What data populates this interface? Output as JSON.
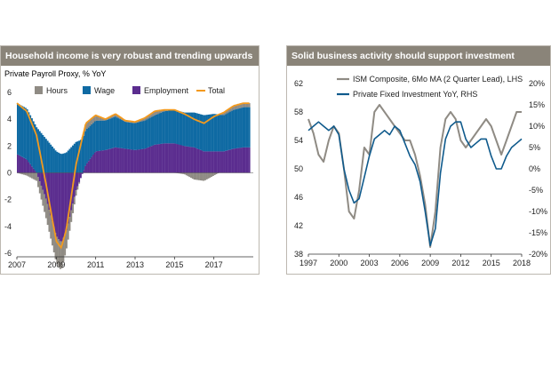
{
  "left": {
    "title": "Household income is very robust and trending upwards",
    "subtitle": "Private Payroll Proxy, % YoY"
  },
  "right": {
    "title": "Solid business activity should support investment"
  },
  "chart_data": [
    {
      "type": "bar",
      "ylim": [
        -6,
        6
      ],
      "yticks": [
        6,
        4,
        2,
        0,
        -2,
        -4,
        -6
      ],
      "xlim": [
        2007.0,
        2019.0
      ],
      "xticks": [
        2007,
        2009,
        2011,
        2013,
        2015,
        2017
      ],
      "legend": [
        "Hours",
        "Wage",
        "Employment",
        "Total"
      ],
      "legend_position": "top",
      "colors": {
        "Hours": "#8f8b84",
        "Wage": "#0f6aa3",
        "Employment": "#5b2d8f",
        "Total": "#f39a1e"
      },
      "x": [
        2007.0,
        2007.5,
        2008.0,
        2008.5,
        2009.0,
        2009.25,
        2009.5,
        2010.0,
        2010.5,
        2011.0,
        2011.5,
        2012.0,
        2012.5,
        2013.0,
        2013.5,
        2014.0,
        2014.5,
        2015.0,
        2015.5,
        2016.0,
        2016.5,
        2017.0,
        2017.5,
        2018.0,
        2018.5
      ],
      "series": [
        {
          "name": "Hours",
          "values": [
            0.0,
            -0.2,
            -0.6,
            -1.5,
            -2.0,
            -2.1,
            -1.4,
            -0.4,
            0.5,
            0.4,
            0.1,
            0.2,
            0.1,
            0.1,
            0.2,
            0.3,
            0.1,
            0.0,
            -0.1,
            -0.5,
            -0.6,
            -0.2,
            0.2,
            0.3,
            0.3
          ]
        },
        {
          "name": "Wage",
          "values": [
            3.8,
            3.8,
            3.4,
            2.5,
            1.6,
            1.4,
            1.5,
            2.3,
            2.6,
            2.3,
            2.2,
            2.3,
            2.0,
            2.0,
            2.1,
            2.2,
            2.4,
            2.5,
            2.5,
            2.6,
            2.7,
            2.8,
            2.7,
            2.9,
            3.0
          ]
        },
        {
          "name": "Employment",
          "values": [
            1.4,
            1.0,
            0.0,
            -2.0,
            -4.7,
            -5.2,
            -4.4,
            -1.3,
            0.6,
            1.6,
            1.7,
            1.9,
            1.8,
            1.7,
            1.8,
            2.1,
            2.2,
            2.2,
            2.0,
            1.9,
            1.6,
            1.6,
            1.6,
            1.8,
            1.9
          ]
        },
        {
          "name": "Total",
          "values": [
            5.2,
            4.6,
            2.8,
            -1.0,
            -5.1,
            -5.6,
            -4.3,
            0.6,
            3.7,
            4.3,
            4.0,
            4.4,
            3.9,
            3.8,
            4.1,
            4.6,
            4.7,
            4.7,
            4.4,
            4.0,
            3.7,
            4.2,
            4.5,
            5.0,
            5.2
          ]
        }
      ]
    },
    {
      "type": "line",
      "y_left_lim": [
        38,
        62
      ],
      "y_left_ticks": [
        62,
        58,
        54,
        50,
        46,
        42,
        38
      ],
      "y_right_lim": [
        -20,
        20
      ],
      "y_right_ticks": [
        "20%",
        "15%",
        "10%",
        "5%",
        "0%",
        "-5%",
        "-10%",
        "-15%",
        "-20%"
      ],
      "xlim": [
        1997,
        2018
      ],
      "xticks": [
        1997,
        2000,
        2003,
        2006,
        2009,
        2012,
        2015,
        2018
      ],
      "legend_position": "top",
      "series": [
        {
          "name": "ISM Composite, 6Mo MA (2 Quarter Lead), LHS",
          "axis": "left",
          "color": "#8f8b84",
          "x": [
            1997,
            1997.5,
            1998,
            1998.5,
            1999,
            1999.5,
            2000,
            2000.5,
            2001,
            2001.5,
            2002,
            2002.5,
            2003,
            2003.5,
            2004,
            2004.5,
            2005,
            2005.5,
            2006,
            2006.5,
            2007,
            2007.5,
            2008,
            2008.5,
            2009,
            2009.5,
            2010,
            2010.5,
            2011,
            2011.5,
            2012,
            2012.5,
            2013,
            2013.5,
            2014,
            2014.5,
            2015,
            2015.5,
            2016,
            2016.5,
            2017,
            2017.5,
            2018
          ],
          "values": [
            57,
            55,
            52,
            51,
            54,
            56,
            55,
            50,
            44,
            43,
            47,
            53,
            52,
            58,
            59,
            58,
            57,
            56,
            55,
            54,
            54,
            52,
            49,
            45,
            39,
            44,
            53,
            57,
            58,
            57,
            54,
            53,
            54,
            55,
            56,
            57,
            56,
            54,
            52,
            54,
            56,
            58,
            58
          ]
        },
        {
          "name": "Private Fixed Investment YoY, RHS",
          "axis": "right",
          "color": "#0f5a8c",
          "x": [
            1997,
            1997.5,
            1998,
            1998.5,
            1999,
            1999.5,
            2000,
            2000.5,
            2001,
            2001.5,
            2002,
            2002.5,
            2003,
            2003.5,
            2004,
            2004.5,
            2005,
            2005.5,
            2006,
            2006.5,
            2007,
            2007.5,
            2008,
            2008.5,
            2009,
            2009.5,
            2010,
            2010.5,
            2011,
            2011.5,
            2012,
            2012.5,
            2013,
            2013.5,
            2014,
            2014.5,
            2015,
            2015.5,
            2016,
            2016.5,
            2017,
            2017.5,
            2018
          ],
          "values": [
            9,
            10,
            11,
            10,
            9,
            10,
            8,
            0,
            -5,
            -8,
            -7,
            -2,
            3,
            7,
            8,
            9,
            8,
            10,
            9,
            6,
            3,
            1,
            -3,
            -10,
            -18,
            -14,
            -1,
            7,
            10,
            11,
            11,
            7,
            5,
            6,
            7,
            7,
            3,
            0,
            0,
            3,
            5,
            6,
            7
          ]
        }
      ]
    }
  ]
}
